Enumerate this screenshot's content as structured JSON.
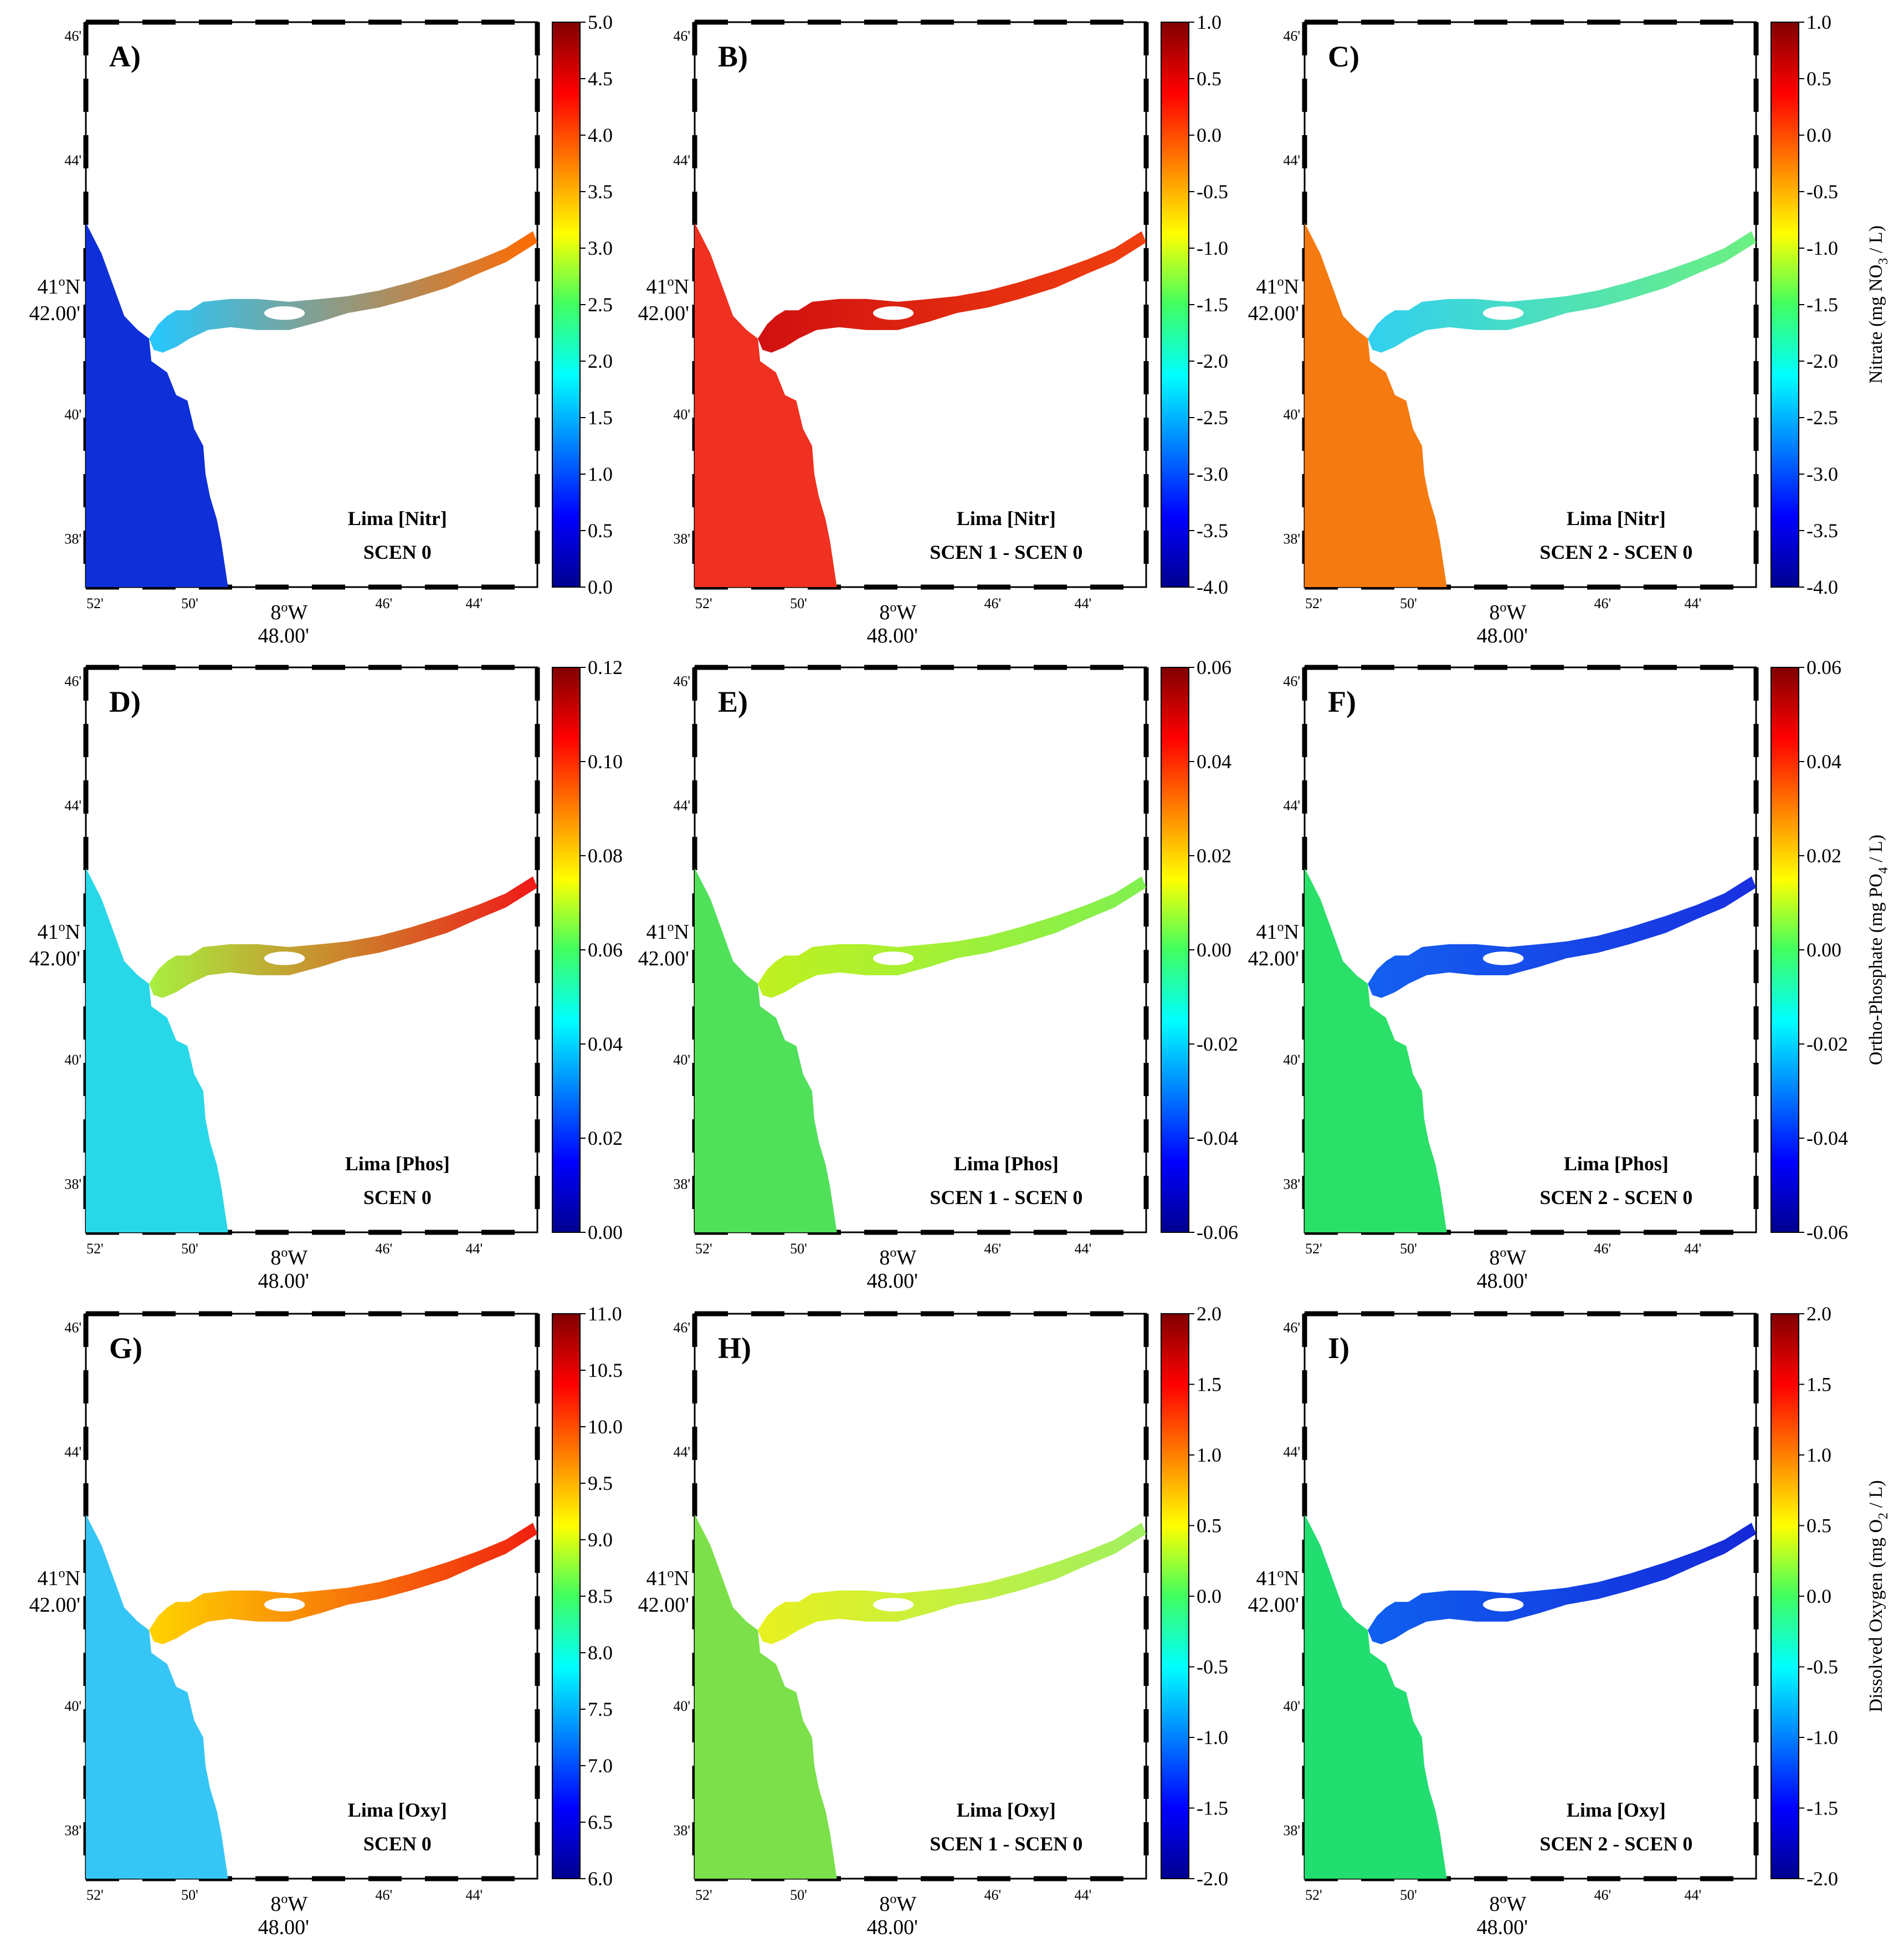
{
  "figure": {
    "panels": [
      {
        "letter": "A)",
        "line1": "Lima [Nitr]",
        "line2": "SCEN 0",
        "variable": "nitr",
        "scenario": "base",
        "colorbar": {
          "ticks": [
            "5.0",
            "4.5",
            "4.0",
            "3.5",
            "3.0",
            "2.5",
            "2.0",
            "1.5",
            "1.0",
            "0.5",
            "0.0"
          ]
        }
      },
      {
        "letter": "B)",
        "line1": "Lima [Nitr]",
        "line2": "SCEN 1 - SCEN 0",
        "variable": "nitr",
        "scenario": "diff1",
        "colorbar": {
          "ticks": [
            "1.0",
            "0.5",
            "0.0",
            "-0.5",
            "-1.0",
            "-1.5",
            "-2.0",
            "-2.5",
            "-3.0",
            "-3.5",
            "-4.0"
          ]
        }
      },
      {
        "letter": "C)",
        "line1": "Lima [Nitr]",
        "line2": "SCEN 2 - SCEN 0",
        "variable": "nitr",
        "scenario": "diff2",
        "colorbar": {
          "ticks": [
            "1.0",
            "0.5",
            "0.0",
            "-0.5",
            "-1.0",
            "-1.5",
            "-2.0",
            "-2.5",
            "-3.0",
            "-3.5",
            "-4.0"
          ],
          "label_pre": "Nitrate (mg NO",
          "label_sub": "3",
          "label_post": " / L)"
        }
      },
      {
        "letter": "D)",
        "line1": "Lima [Phos]",
        "line2": "SCEN 0",
        "variable": "phos",
        "scenario": "base",
        "colorbar": {
          "ticks": [
            "0.12",
            "0.10",
            "0.08",
            "0.06",
            "0.04",
            "0.02",
            "0.00"
          ]
        }
      },
      {
        "letter": "E)",
        "line1": "Lima [Phos]",
        "line2": "SCEN 1 - SCEN 0",
        "variable": "phos",
        "scenario": "diff1",
        "colorbar": {
          "ticks": [
            "0.06",
            "0.04",
            "0.02",
            "0.00",
            "-0.02",
            "-0.04",
            "-0.06"
          ]
        }
      },
      {
        "letter": "F)",
        "line1": "Lima [Phos]",
        "line2": "SCEN 2 - SCEN 0",
        "variable": "phos",
        "scenario": "diff2",
        "colorbar": {
          "ticks": [
            "0.06",
            "0.04",
            "0.02",
            "0.00",
            "-0.02",
            "-0.04",
            "-0.06"
          ],
          "label_pre": "Ortho-Phosphate (mg PO",
          "label_sub": "4",
          "label_post": " / L)"
        }
      },
      {
        "letter": "G)",
        "line1": "Lima [Oxy]",
        "line2": "SCEN 0",
        "variable": "oxy",
        "scenario": "base",
        "colorbar": {
          "ticks": [
            "11.0",
            "10.5",
            "10.0",
            "9.5",
            "9.0",
            "8.5",
            "8.0",
            "7.5",
            "7.0",
            "6.5",
            "6.0"
          ]
        }
      },
      {
        "letter": "H)",
        "line1": "Lima [Oxy]",
        "line2": "SCEN 1 - SCEN 0",
        "variable": "oxy",
        "scenario": "diff1",
        "colorbar": {
          "ticks": [
            "2.0",
            "1.5",
            "1.0",
            "0.5",
            "0.0",
            "-0.5",
            "-1.0",
            "-1.5",
            "-2.0"
          ]
        }
      },
      {
        "letter": "I)",
        "line1": "Lima [Oxy]",
        "line2": "SCEN 2 - SCEN 0",
        "variable": "oxy",
        "scenario": "diff2",
        "colorbar": {
          "ticks": [
            "2.0",
            "1.5",
            "1.0",
            "0.5",
            "0.0",
            "-0.5",
            "-1.0",
            "-1.5",
            "-2.0"
          ],
          "label_pre": "Dissolved Oxygen (mg O",
          "label_sub": "2",
          "label_post": " / L)"
        }
      }
    ],
    "axes": {
      "lat_ticks": [
        "46'",
        "44'",
        "42.00'",
        "40'",
        "38'"
      ],
      "lat_center_label": "41",
      "lat_center_unit": "N",
      "lon_ticks": [
        "52'",
        "50'",
        "48.00'",
        "46'",
        "44'"
      ],
      "lon_center_label": "8",
      "lon_center_unit": "W"
    },
    "fields": {
      "nitr": {
        "base": {
          "sea": "#0f2fd8",
          "river_start": "#25c8ff",
          "river_end": "#ff6a00"
        },
        "diff1": {
          "sea": "#f03020",
          "river_start": "#d01010",
          "river_end": "#f04010"
        },
        "diff2": {
          "sea": "#f57a10",
          "river_start": "#31d0f0",
          "river_end": "#6cf080"
        }
      },
      "phos": {
        "base": {
          "sea": "#28d8e8",
          "river_start": "#a8f040",
          "river_end": "#f01818"
        },
        "diff1": {
          "sea": "#50e05a",
          "river_start": "#c0f020",
          "river_end": "#80f050"
        },
        "diff2": {
          "sea": "#2be068",
          "river_start": "#1460f0",
          "river_end": "#1830e0"
        }
      },
      "oxy": {
        "base": {
          "sea": "#36c6f5",
          "river_start": "#ffd400",
          "river_end": "#f02010"
        },
        "diff1": {
          "sea": "#7be04a",
          "river_start": "#e8f020",
          "river_end": "#a0f060"
        },
        "diff2": {
          "sea": "#22dd70",
          "river_start": "#1060f0",
          "river_end": "#1428d8"
        }
      }
    }
  }
}
